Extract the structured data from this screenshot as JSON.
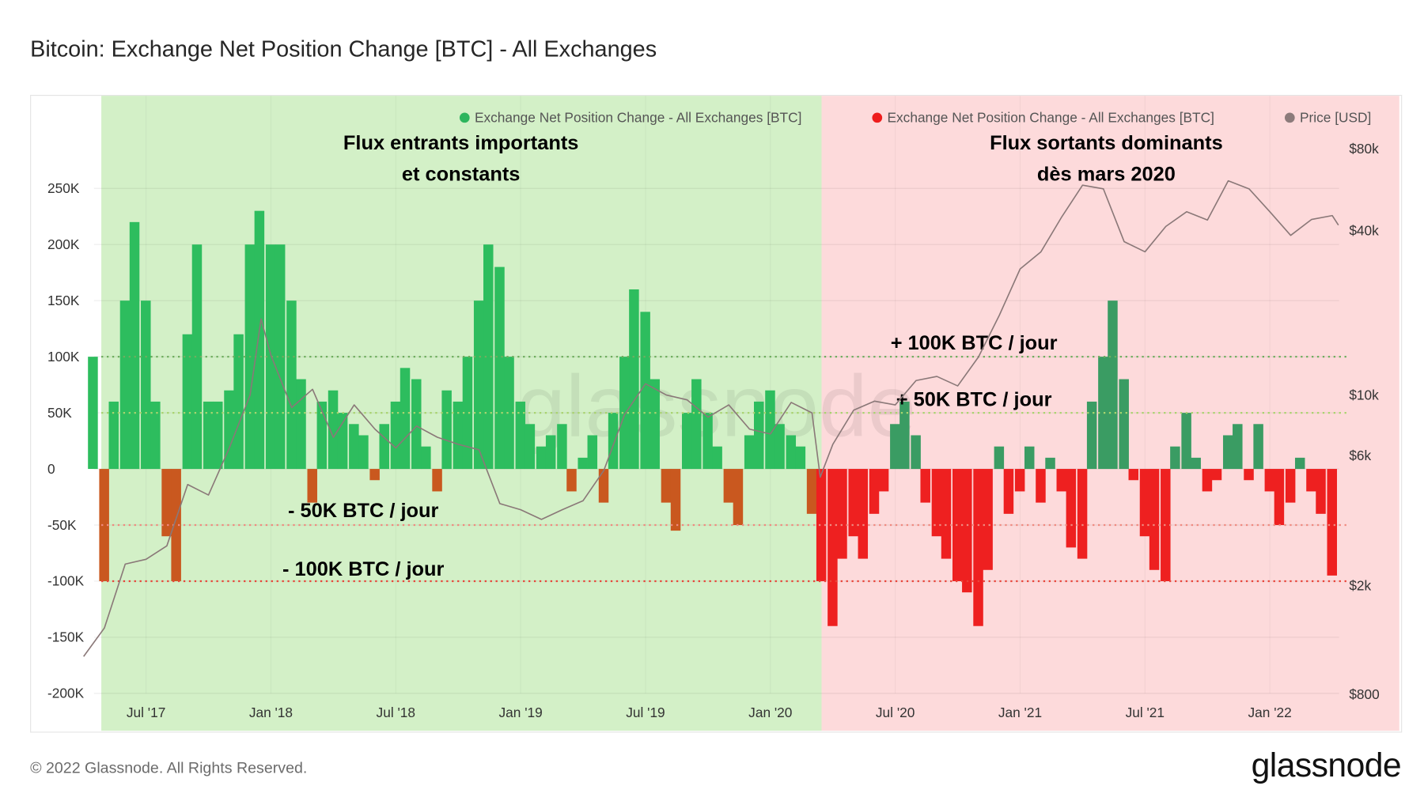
{
  "title": "Bitcoin: Exchange Net Position Change [BTC] - All Exchanges",
  "footer": "© 2022 Glassnode. All Rights Reserved.",
  "logo": "glassnode",
  "watermark": "glassnode",
  "chart_data": {
    "type": "bar",
    "title": "Bitcoin: Exchange Net Position Change [BTC] - All Exchanges",
    "legend": [
      {
        "label": "Exchange Net Position Change - All Exchanges [BTC]",
        "color": "#2db55d"
      },
      {
        "label": "Exchange Net Position Change - All Exchanges [BTC]",
        "color": "#ee1c1c"
      },
      {
        "label": "Price [USD]",
        "color": "#8c7b7b"
      }
    ],
    "legend_position": "top-right",
    "grid": true,
    "y_left": {
      "ticks": [
        "250K",
        "200K",
        "150K",
        "100K",
        "50K",
        "0",
        "-50K",
        "-100K",
        "-150K",
        "-200K"
      ],
      "range": [
        -200000,
        250000
      ]
    },
    "y_right": {
      "scale": "log",
      "ticks": [
        "$80k",
        "$40k",
        "$10k",
        "$6k",
        "$2k",
        "$800"
      ],
      "values": [
        80000,
        40000,
        10000,
        6000,
        2000,
        800
      ]
    },
    "x_ticks": [
      "Jul '17",
      "Jan '18",
      "Jul '18",
      "Jan '19",
      "Jul '19",
      "Jan '20",
      "Jul '20",
      "Jan '21",
      "Jul '21",
      "Jan '22"
    ],
    "regions": [
      {
        "start": "2017-04-15",
        "end": "2020-03-15",
        "color": "#d3f0c7",
        "label_lines": [
          "Flux entrants importants",
          "et constants"
        ],
        "positive_color": "#2dbd5e",
        "negative_color": "#c9581f"
      },
      {
        "start": "2020-03-15",
        "end": "2022-04-15",
        "color": "#fddadb",
        "label_lines": [
          "Flux sortants dominants",
          "dès mars 2020"
        ],
        "positive_color": "#3a9c63",
        "negative_color": "#ee2020"
      }
    ],
    "reference_lines": [
      {
        "value": 100000,
        "label": "+ 100K BTC / jour",
        "color": "#6fae5f"
      },
      {
        "value": 50000,
        "label": "+ 50K BTC / jour",
        "color": "#a9d46f"
      },
      {
        "value": -50000,
        "label": "- 50K BTC / jour",
        "color": "#f08a80"
      },
      {
        "value": -100000,
        "label": "- 100K BTC / jour",
        "color": "#e8453a"
      }
    ],
    "net_position_change": {
      "dates": [
        "2017-04-15",
        "2017-05-01",
        "2017-05-15",
        "2017-06-01",
        "2017-06-15",
        "2017-07-01",
        "2017-07-15",
        "2017-08-01",
        "2017-08-15",
        "2017-09-01",
        "2017-09-15",
        "2017-10-01",
        "2017-10-15",
        "2017-11-01",
        "2017-11-15",
        "2017-12-01",
        "2017-12-15",
        "2018-01-01",
        "2018-01-15",
        "2018-02-01",
        "2018-02-15",
        "2018-03-01",
        "2018-03-15",
        "2018-04-01",
        "2018-04-15",
        "2018-05-01",
        "2018-05-15",
        "2018-06-01",
        "2018-06-15",
        "2018-07-01",
        "2018-07-15",
        "2018-08-01",
        "2018-08-15",
        "2018-09-01",
        "2018-09-15",
        "2018-10-01",
        "2018-10-15",
        "2018-11-01",
        "2018-11-15",
        "2018-12-01",
        "2018-12-15",
        "2019-01-01",
        "2019-01-15",
        "2019-02-01",
        "2019-02-15",
        "2019-03-01",
        "2019-03-15",
        "2019-04-01",
        "2019-04-15",
        "2019-05-01",
        "2019-05-15",
        "2019-06-01",
        "2019-06-15",
        "2019-07-01",
        "2019-07-15",
        "2019-08-01",
        "2019-08-15",
        "2019-09-01",
        "2019-09-15",
        "2019-10-01",
        "2019-10-15",
        "2019-11-01",
        "2019-11-15",
        "2019-12-01",
        "2019-12-15",
        "2020-01-01",
        "2020-01-15",
        "2020-02-01",
        "2020-02-15",
        "2020-03-01",
        "2020-03-15",
        "2020-04-01",
        "2020-04-15",
        "2020-05-01",
        "2020-05-15",
        "2020-06-01",
        "2020-06-15",
        "2020-07-01",
        "2020-07-15",
        "2020-08-01",
        "2020-08-15",
        "2020-09-01",
        "2020-09-15",
        "2020-10-01",
        "2020-10-15",
        "2020-11-01",
        "2020-11-15",
        "2020-12-01",
        "2020-12-15",
        "2021-01-01",
        "2021-01-15",
        "2021-02-01",
        "2021-02-15",
        "2021-03-01",
        "2021-03-15",
        "2021-04-01",
        "2021-04-15",
        "2021-05-01",
        "2021-05-15",
        "2021-06-01",
        "2021-06-15",
        "2021-07-01",
        "2021-07-15",
        "2021-08-01",
        "2021-08-15",
        "2021-09-01",
        "2021-09-15",
        "2021-10-01",
        "2021-10-15",
        "2021-11-01",
        "2021-11-15",
        "2021-12-01",
        "2021-12-15",
        "2022-01-01",
        "2022-01-15",
        "2022-02-01",
        "2022-02-15",
        "2022-03-01",
        "2022-03-15",
        "2022-04-01"
      ],
      "values": [
        100000,
        -100000,
        60000,
        150000,
        220000,
        150000,
        60000,
        -60000,
        -100000,
        120000,
        200000,
        60000,
        60000,
        70000,
        120000,
        200000,
        230000,
        200000,
        200000,
        150000,
        80000,
        -30000,
        60000,
        70000,
        50000,
        40000,
        30000,
        -10000,
        40000,
        60000,
        90000,
        80000,
        20000,
        -20000,
        70000,
        60000,
        100000,
        150000,
        200000,
        180000,
        100000,
        60000,
        40000,
        20000,
        30000,
        40000,
        -20000,
        10000,
        30000,
        -30000,
        50000,
        100000,
        160000,
        140000,
        80000,
        -30000,
        -55000,
        50000,
        80000,
        50000,
        20000,
        -30000,
        -50000,
        30000,
        60000,
        70000,
        40000,
        30000,
        20000,
        -40000,
        -100000,
        -140000,
        -80000,
        -60000,
        -80000,
        -40000,
        -20000,
        40000,
        60000,
        30000,
        -30000,
        -60000,
        -80000,
        -100000,
        -110000,
        -140000,
        -90000,
        20000,
        -40000,
        -20000,
        20000,
        -30000,
        10000,
        -20000,
        -70000,
        -80000,
        60000,
        100000,
        150000,
        80000,
        -10000,
        -60000,
        -90000,
        -100000,
        20000,
        50000,
        10000,
        -20000,
        -10000,
        30000,
        40000,
        -10000,
        40000,
        -20000,
        -50000,
        -30000,
        10000,
        -20000,
        -40000,
        -95000
      ]
    },
    "price_usd": {
      "dates": [
        "2017-04-01",
        "2017-05-01",
        "2017-06-01",
        "2017-07-01",
        "2017-08-01",
        "2017-09-01",
        "2017-10-01",
        "2017-11-01",
        "2017-12-01",
        "2017-12-17",
        "2018-01-01",
        "2018-02-01",
        "2018-03-01",
        "2018-04-01",
        "2018-05-01",
        "2018-06-01",
        "2018-07-01",
        "2018-08-01",
        "2018-09-01",
        "2018-10-01",
        "2018-11-01",
        "2018-12-01",
        "2019-01-01",
        "2019-02-01",
        "2019-03-01",
        "2019-04-01",
        "2019-05-01",
        "2019-06-01",
        "2019-07-01",
        "2019-08-01",
        "2019-09-01",
        "2019-10-01",
        "2019-11-01",
        "2019-12-01",
        "2020-01-01",
        "2020-02-01",
        "2020-03-01",
        "2020-03-13",
        "2020-04-01",
        "2020-05-01",
        "2020-06-01",
        "2020-07-01",
        "2020-08-01",
        "2020-09-01",
        "2020-10-01",
        "2020-11-01",
        "2020-12-01",
        "2021-01-01",
        "2021-02-01",
        "2021-03-01",
        "2021-04-01",
        "2021-05-01",
        "2021-06-01",
        "2021-07-01",
        "2021-08-01",
        "2021-09-01",
        "2021-10-01",
        "2021-11-01",
        "2021-12-01",
        "2022-01-01",
        "2022-02-01",
        "2022-03-01",
        "2022-04-01",
        "2022-04-10"
      ],
      "values": [
        1100,
        1400,
        2400,
        2500,
        2800,
        4700,
        4300,
        6400,
        10000,
        19000,
        14000,
        9000,
        10500,
        7000,
        9200,
        7500,
        6400,
        7700,
        7000,
        6600,
        6300,
        4000,
        3800,
        3500,
        3800,
        4100,
        5300,
        8500,
        11000,
        10000,
        9600,
        8300,
        9200,
        7500,
        7200,
        9400,
        8600,
        5000,
        6600,
        8800,
        9500,
        9200,
        11300,
        11700,
        10800,
        13800,
        19600,
        29000,
        33500,
        45000,
        58800,
        57000,
        36500,
        33500,
        41500,
        47000,
        43800,
        61000,
        57000,
        47000,
        38500,
        44000,
        45500,
        42000
      ]
    }
  }
}
